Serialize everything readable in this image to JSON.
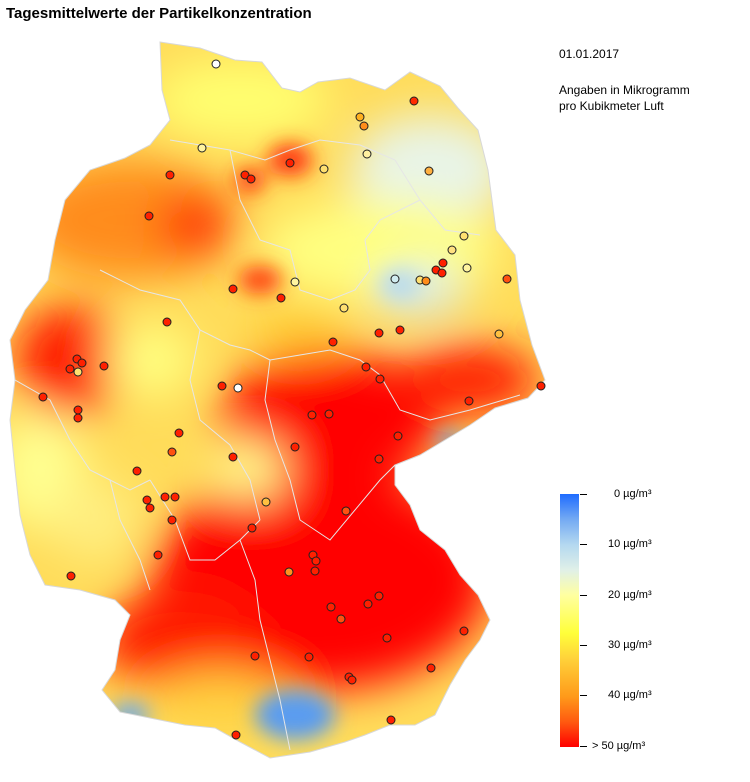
{
  "title": "Tagesmittelwerte der Partikelkonzentration",
  "date": "01.01.2017",
  "unit_line1": "Angaben in Mikrogramm",
  "unit_line2": "pro Kubikmeter Luft",
  "legend": {
    "labels": [
      "0 µg/m³",
      "10 µg/m³",
      "20 µg/m³",
      "30 µg/m³",
      "40 µg/m³",
      "> 50 µg/m³"
    ]
  },
  "colors": {
    "high": "#ff0000",
    "orange": "#ff8c1a",
    "yellow": "#ffff4a",
    "low": "#1f6cff"
  }
}
